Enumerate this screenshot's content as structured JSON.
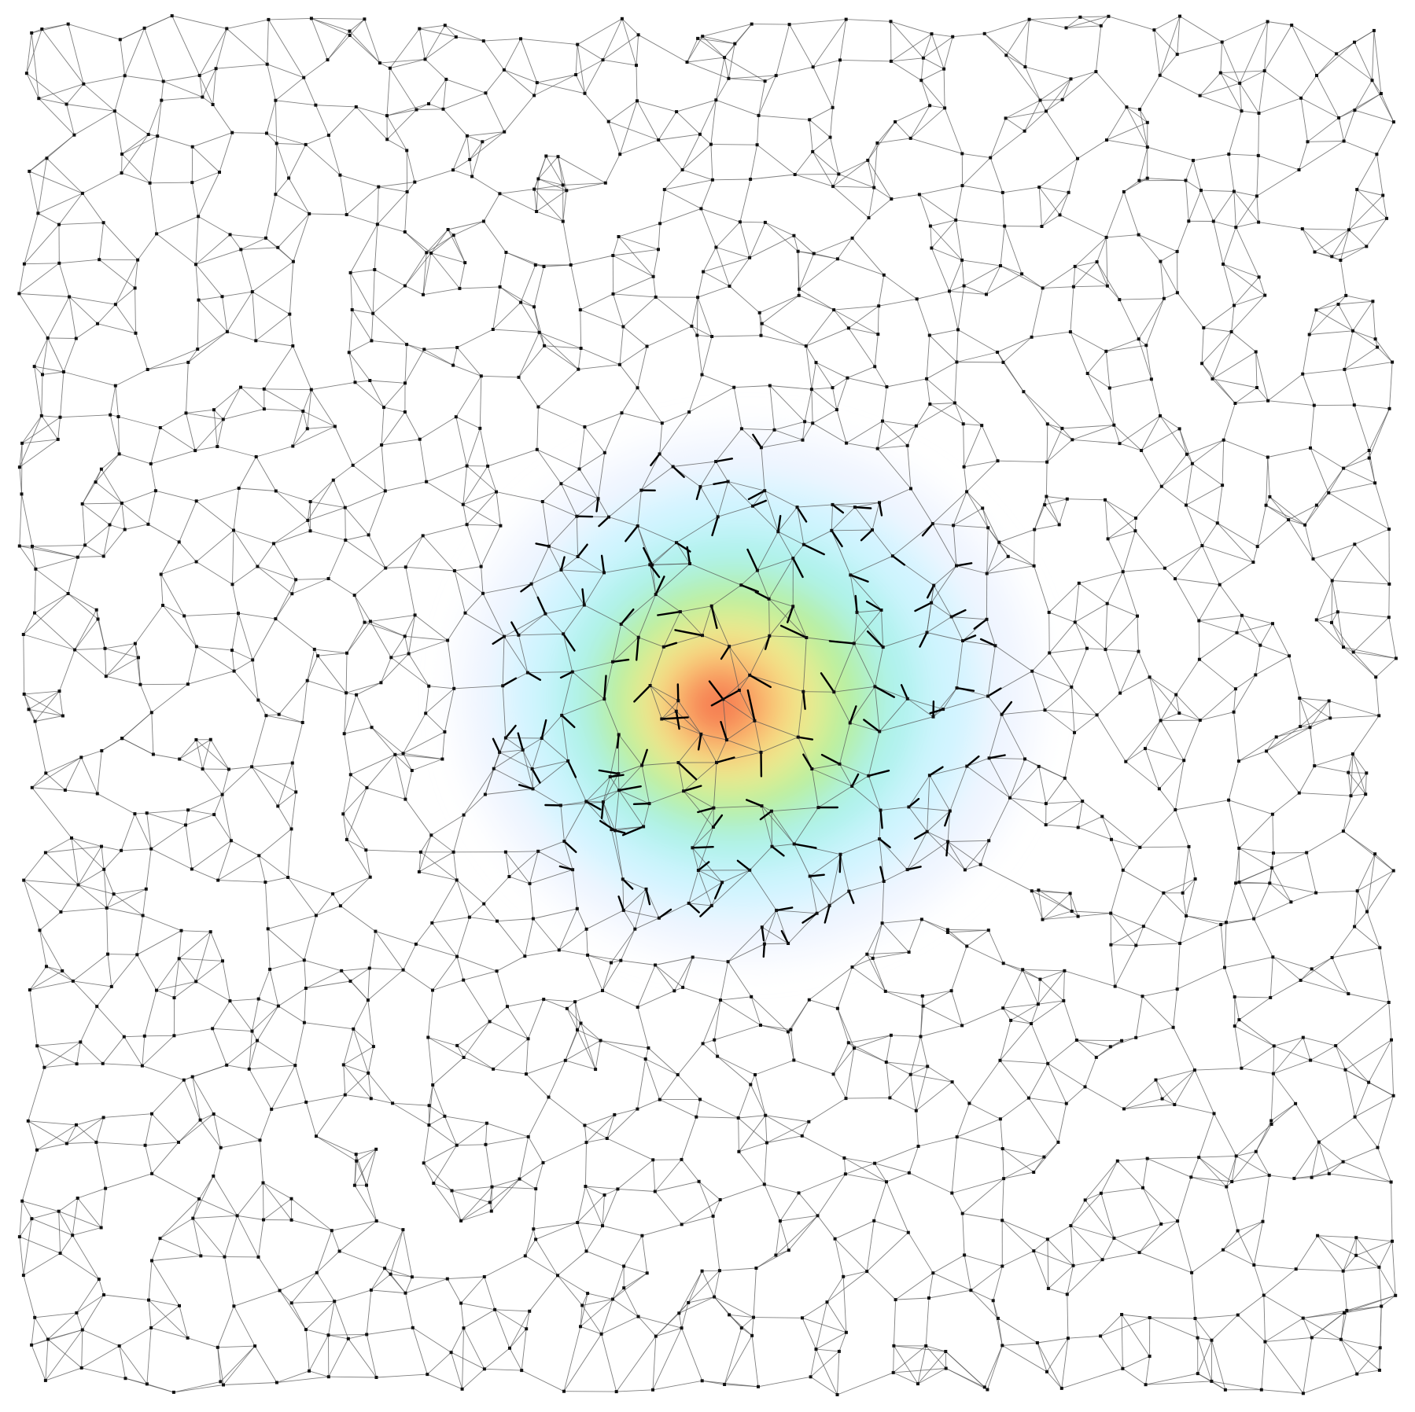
{
  "figure": {
    "kind": "random geometric graph with local heat field",
    "background": "#ffffff",
    "colors": {
      "edge": "#555555",
      "node": "#111111",
      "arrow": "#000000",
      "heat_scale": [
        "#ffffff",
        "#e8f0ff",
        "#c8f4ff",
        "#a6f2e8",
        "#b8f08a",
        "#ffe98a",
        "#ffb26a",
        "#f46a4a"
      ]
    },
    "graph": {
      "seed": 7315,
      "approx_nodes": 1200,
      "edges_per_node": 4
    },
    "heat_field": {
      "peak_level": 1.0,
      "falloff": "radial gaussian"
    },
    "displacement_arrows": {
      "shown": true,
      "count": 160
    }
  }
}
